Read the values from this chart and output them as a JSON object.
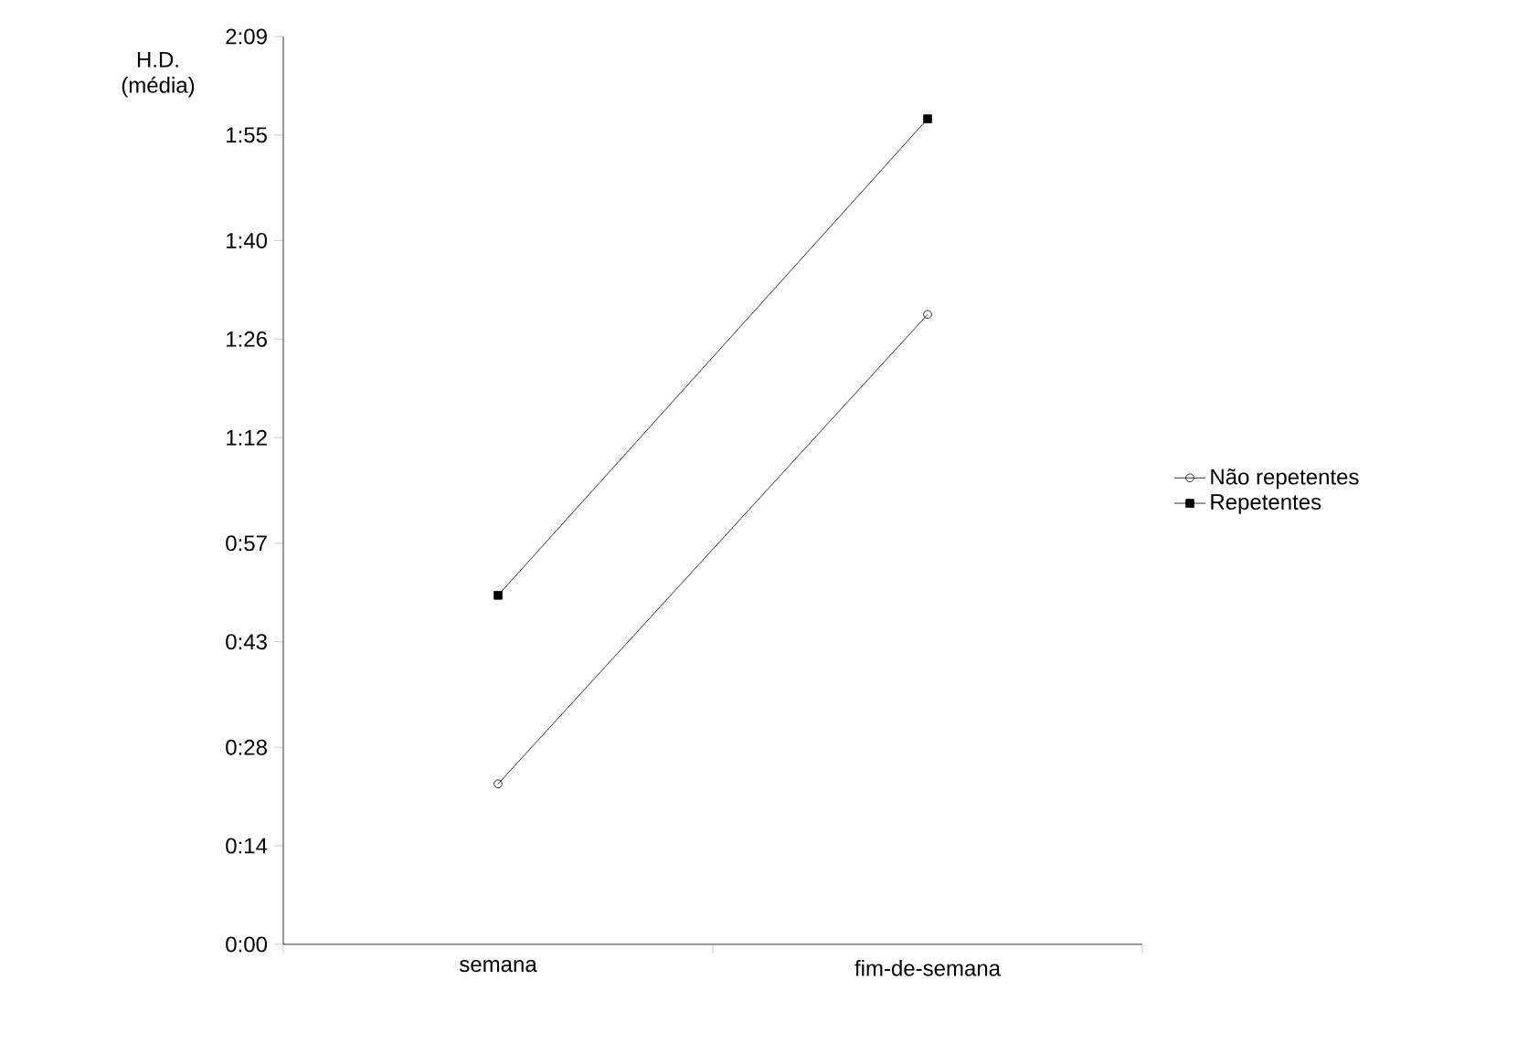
{
  "chart_data": {
    "type": "line",
    "ylabel": "H.D. (média)",
    "categories": [
      "semana",
      "fim-de-semana"
    ],
    "series": [
      {
        "name": "Não repetentes",
        "color": "#000000",
        "marker": "circle",
        "values": [
          22.8,
          89.5
        ]
      },
      {
        "name": "Repetentes",
        "color": "#000000",
        "marker": "square",
        "values": [
          49.6,
          117.3
        ]
      }
    ],
    "ylim": [
      0,
      129
    ],
    "yticks": [
      {
        "value": 0,
        "label": "0:00"
      },
      {
        "value": 14,
        "label": "0:14"
      },
      {
        "value": 28,
        "label": "0:28"
      },
      {
        "value": 43,
        "label": "0:43"
      },
      {
        "value": 57,
        "label": "0:57"
      },
      {
        "value": 72,
        "label": "1:12"
      },
      {
        "value": 86,
        "label": "1:26"
      },
      {
        "value": 100,
        "label": "1:40"
      },
      {
        "value": 115,
        "label": "1:55"
      },
      {
        "value": 129,
        "label": "2:09"
      }
    ],
    "grid": false,
    "legend": "right",
    "line_style": "solid"
  }
}
